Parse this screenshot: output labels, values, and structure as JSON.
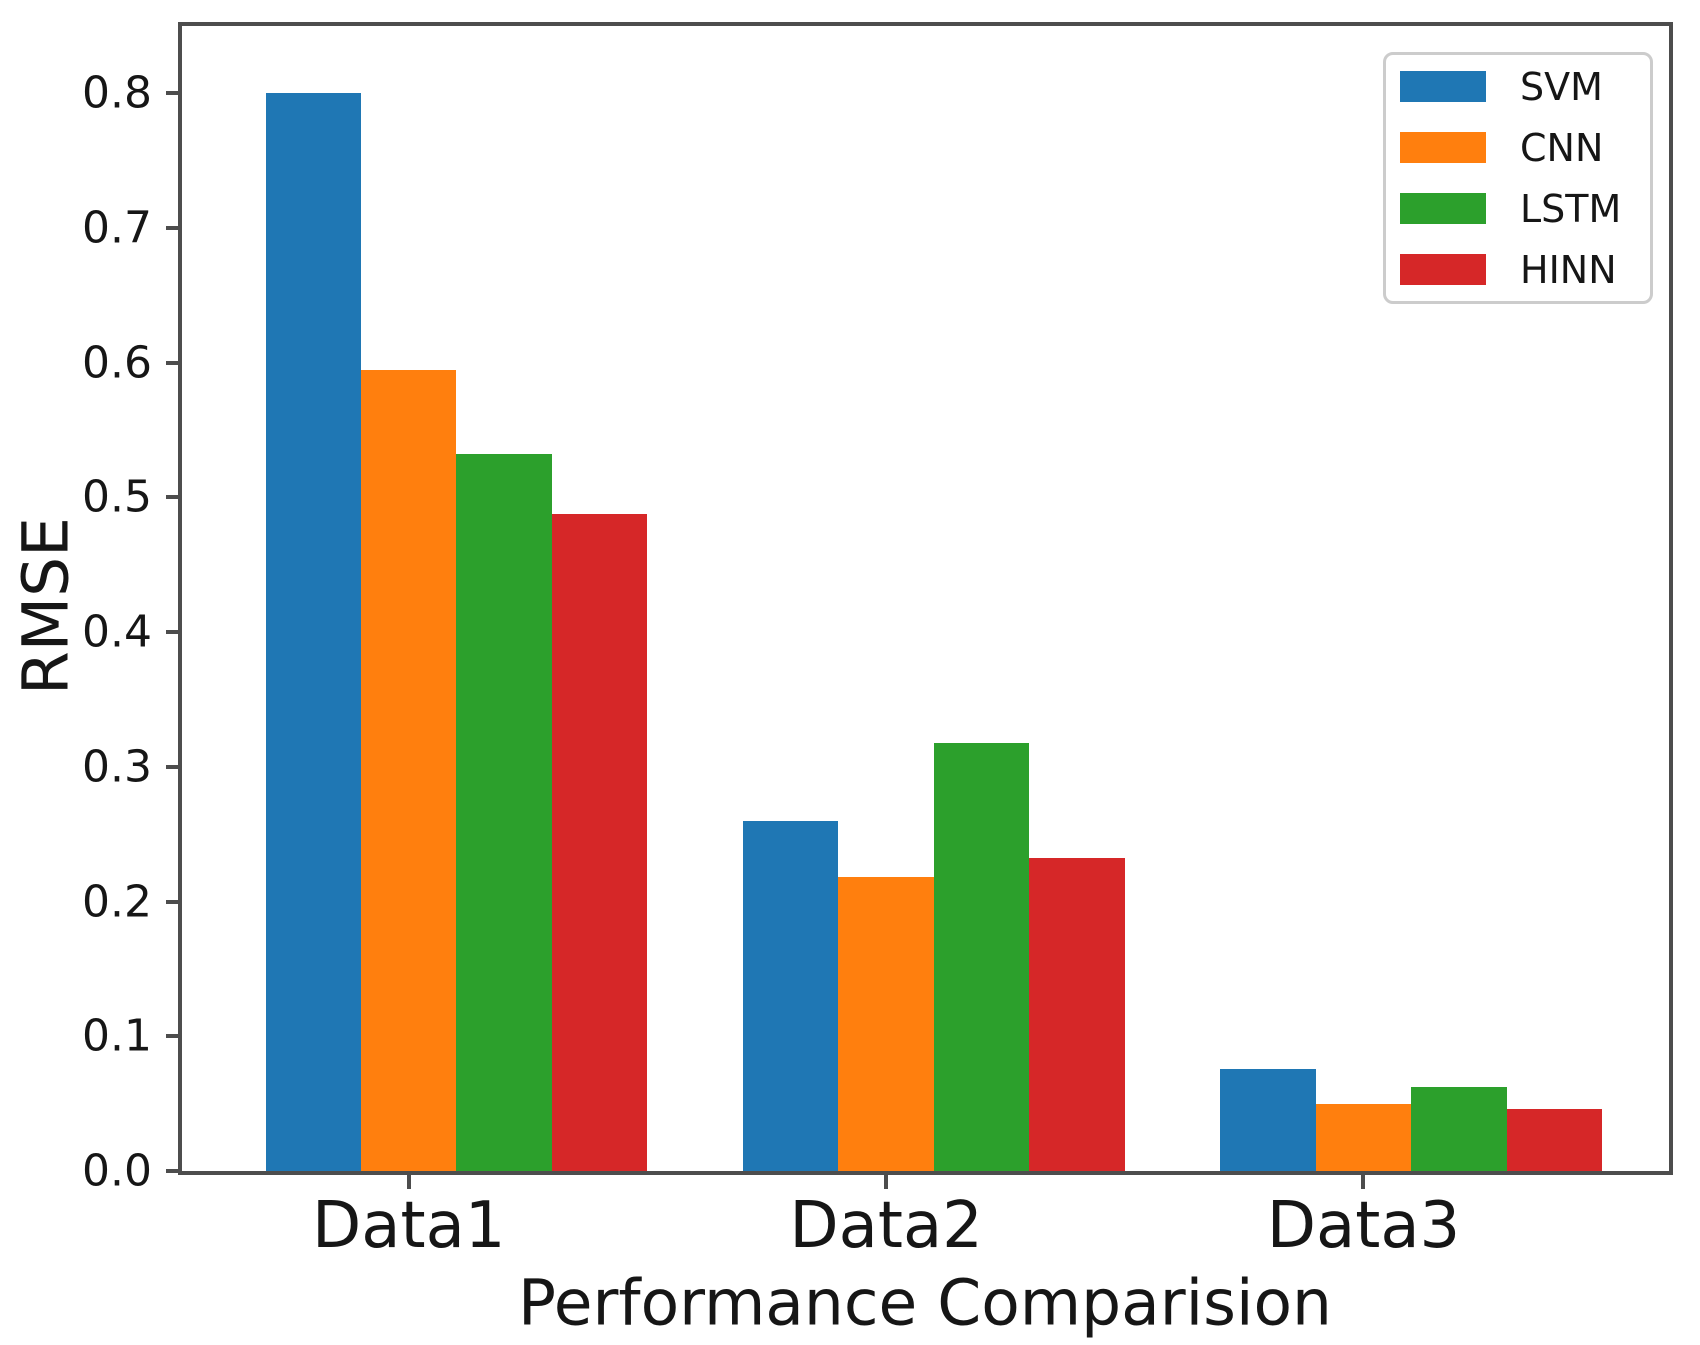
{
  "chart_data": {
    "type": "bar",
    "title": "",
    "xlabel": "Performance Comparision",
    "ylabel": "RMSE",
    "categories": [
      "Data1",
      "Data2",
      "Data3"
    ],
    "series": [
      {
        "name": "SVM",
        "color": "#1f77b4",
        "values": [
          0.8,
          0.26,
          0.076
        ]
      },
      {
        "name": "CNN",
        "color": "#ff7f0e",
        "values": [
          0.595,
          0.218,
          0.05
        ]
      },
      {
        "name": "LSTM",
        "color": "#2ca02c",
        "values": [
          0.532,
          0.318,
          0.062
        ]
      },
      {
        "name": "HINN",
        "color": "#d62728",
        "values": [
          0.488,
          0.232,
          0.046
        ]
      }
    ],
    "ylim": [
      0,
      0.85
    ],
    "yticks": [
      "0.0",
      "0.1",
      "0.2",
      "0.3",
      "0.4",
      "0.5",
      "0.6",
      "0.7",
      "0.8"
    ],
    "grid": false,
    "legend_position": "upper right",
    "layout": {
      "xlim": [
        -0.475,
        2.64
      ],
      "bar_width": 0.2,
      "bar_offsets": [
        -0.2,
        0.0,
        0.2,
        0.4
      ]
    }
  }
}
